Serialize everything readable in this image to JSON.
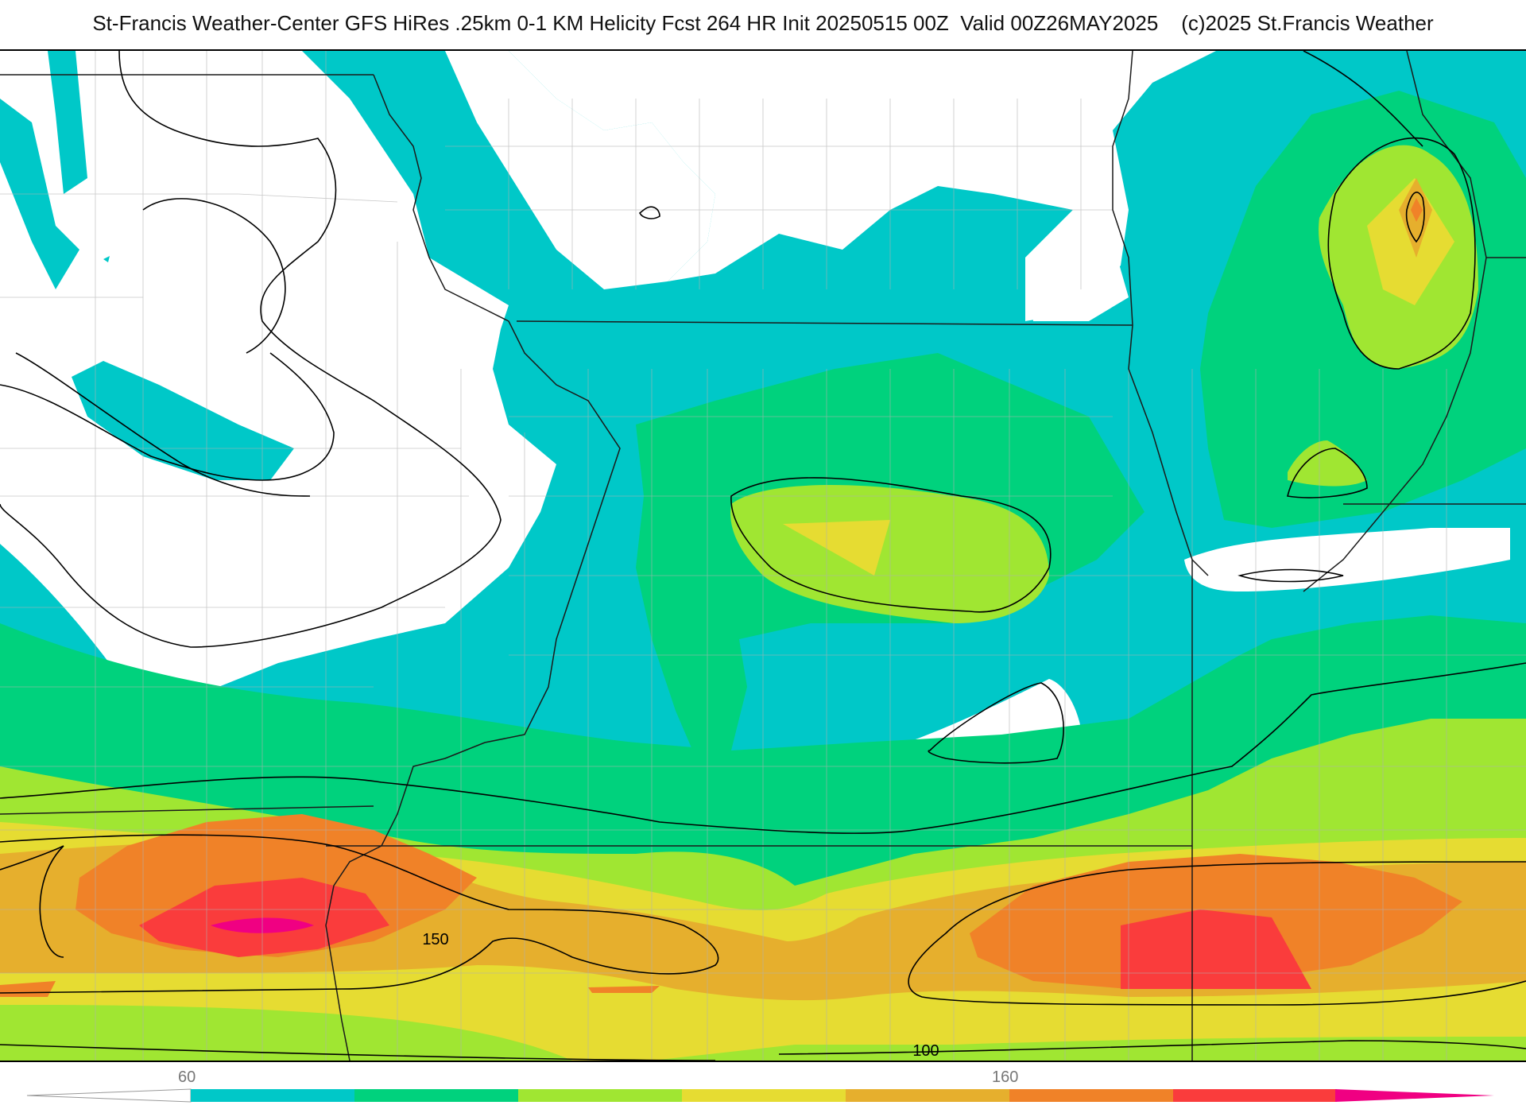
{
  "header": {
    "title": "St-Francis Weather-Center GFS HiRes .25km 0-1 KM Helicity Fcst 264 HR Init 20250515 00Z  Valid 00Z26MAY2025    (c)2025 St.Francis Weather"
  },
  "map": {
    "contour_labels": [
      "150",
      "100"
    ]
  },
  "colorbar": {
    "tick_labels": [
      "60",
      "160"
    ],
    "colors": [
      "#00c8c8",
      "#00d27d",
      "#a0e632",
      "#e6dc32",
      "#e6af2d",
      "#f08228",
      "#fa3c3c",
      "#f00082"
    ]
  }
}
